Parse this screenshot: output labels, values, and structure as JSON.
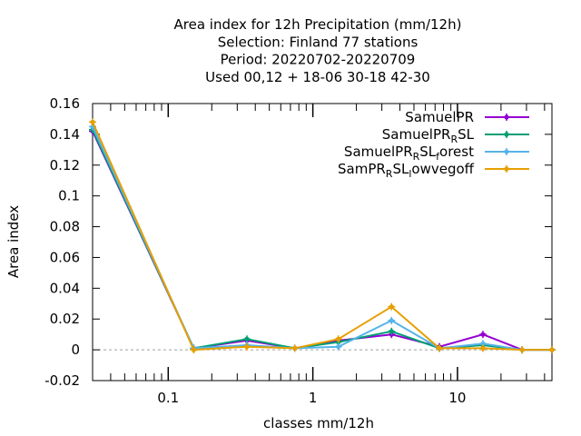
{
  "chart_data": {
    "type": "line",
    "title_lines": [
      "Area index  for 12h Precipitation (mm/12h)",
      "Selection: Finland     77 stations",
      "Period: 20220702-20220709",
      "Used  00,12  + 18-06 30-18 42-30"
    ],
    "xlabel": "classes mm/12h",
    "ylabel": "Area index",
    "x_scale": "log",
    "xlim": [
      0.03,
      45
    ],
    "ylim": [
      -0.02,
      0.16
    ],
    "y_ticks": [
      "-0.02",
      "0",
      "0.02",
      "0.04",
      "0.06",
      "0.08",
      "0.1",
      "0.12",
      "0.14",
      "0.16"
    ],
    "x_ticks": [
      "0.1",
      "1",
      "10"
    ],
    "x": [
      0.03,
      0.15,
      0.35,
      0.75,
      1.5,
      3.5,
      7.5,
      15,
      28,
      45
    ],
    "series": [
      {
        "name": "SamuelPR",
        "color": "#9400d3",
        "values": [
          0.142,
          0.001,
          0.006,
          0.001,
          0.006,
          0.01,
          0.002,
          0.01,
          0.0,
          0.0
        ]
      },
      {
        "name": "SamuelPR_RSL",
        "color": "#009e73",
        "values": [
          0.143,
          0.001,
          0.007,
          0.001,
          0.005,
          0.012,
          0.001,
          0.003,
          0.0,
          0.0
        ]
      },
      {
        "name": "SamuelPR_RSL_forest",
        "color": "#56b4e9",
        "values": [
          0.145,
          0.001,
          0.003,
          0.001,
          0.002,
          0.019,
          0.001,
          0.004,
          0.0,
          0.0
        ]
      },
      {
        "name": "SamPR_RSL_lowvegoff",
        "color": "#e69f00",
        "values": [
          0.148,
          0.0,
          0.002,
          0.001,
          0.007,
          0.028,
          0.001,
          0.001,
          0.0,
          0.0
        ]
      }
    ],
    "legend": {
      "position": "top-right",
      "entries": [
        {
          "parts": [
            [
              "SamuelPR",
              ""
            ]
          ]
        },
        {
          "parts": [
            [
              "SamuelPR",
              ""
            ],
            [
              "R",
              "sub"
            ],
            [
              "SL",
              ""
            ]
          ]
        },
        {
          "parts": [
            [
              "SamuelPR",
              ""
            ],
            [
              "R",
              "sub"
            ],
            [
              "SL",
              ""
            ],
            [
              "f",
              "sub"
            ],
            [
              "orest",
              ""
            ]
          ]
        },
        {
          "parts": [
            [
              "SamPR",
              ""
            ],
            [
              "R",
              "sub"
            ],
            [
              "SL",
              ""
            ],
            [
              "l",
              "sub"
            ],
            [
              "owvegoff",
              ""
            ]
          ]
        }
      ]
    },
    "grid": false
  }
}
